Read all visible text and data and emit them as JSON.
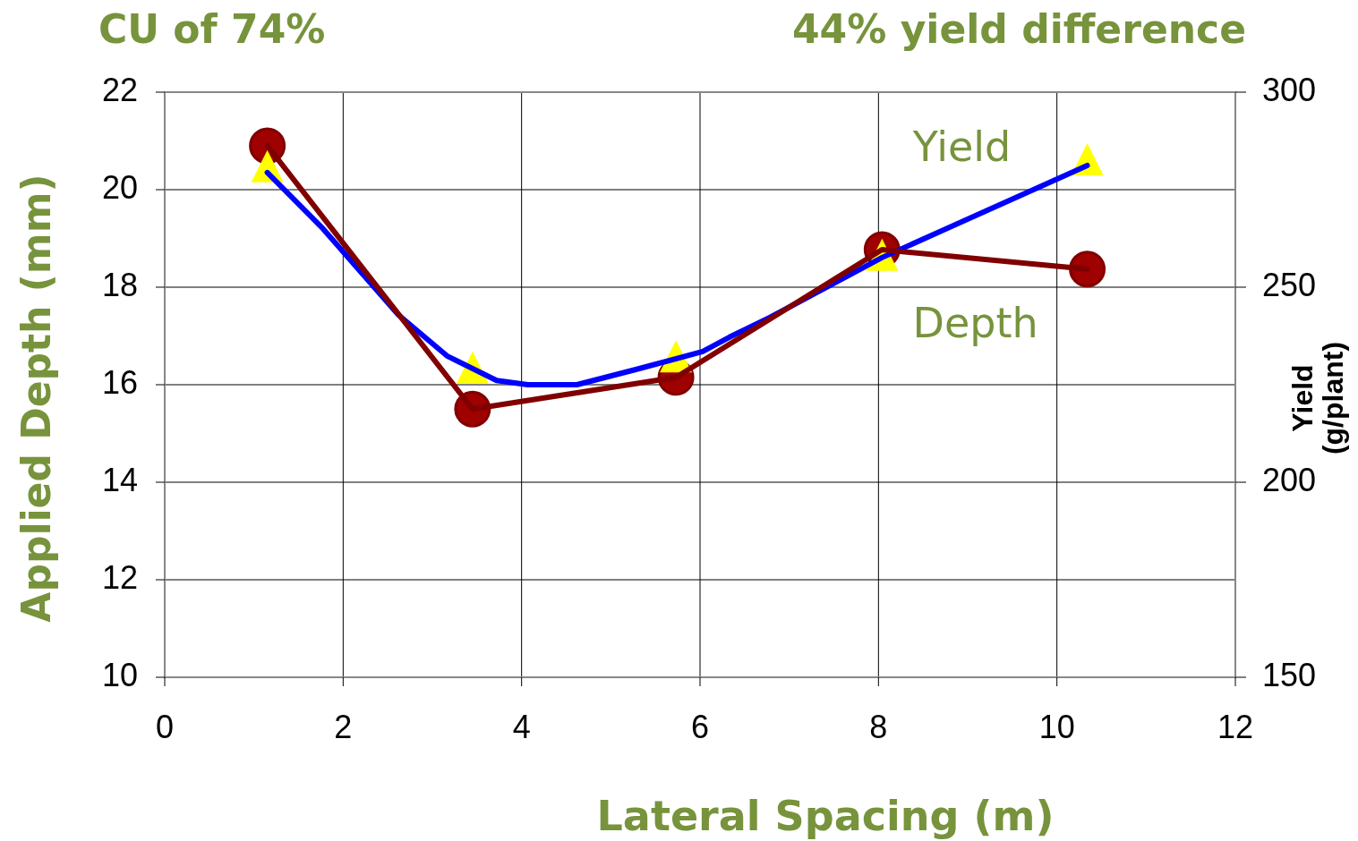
{
  "chart_data": {
    "type": "line",
    "title": "CU of 74%",
    "subtitle": "44% yield difference",
    "xlabel": "Lateral Spacing (m)",
    "ylabel": "Applied Depth (mm)",
    "y2label": "Yield (g/plant)",
    "xlim": [
      0,
      12
    ],
    "xticks": [
      0,
      2,
      4,
      6,
      8,
      10,
      12
    ],
    "ylim": [
      10,
      22
    ],
    "yticks": [
      10,
      12,
      14,
      16,
      18,
      20,
      22
    ],
    "y2lim": [
      150,
      300
    ],
    "y2ticks": [
      150,
      200,
      250,
      300
    ],
    "grid": true,
    "legend": false,
    "series": [
      {
        "type": "line",
        "color": "#0000ff",
        "axis": "y2",
        "marker": "none",
        "x": [
          1.15,
          1.77,
          2.62,
          3.17,
          3.72,
          4.07,
          4.62,
          5.28,
          6.03,
          6.33,
          6.78,
          8.04,
          10.34
        ],
        "values": [
          279.4,
          265.1,
          242.9,
          232.3,
          226.1,
          225,
          225,
          228.9,
          233.5,
          237.2,
          242.2,
          257.6,
          281.2
        ]
      },
      {
        "type": "line",
        "name": "Depth",
        "color": "#800000",
        "marker": "circle",
        "x": [
          1.15,
          3.45,
          5.73,
          8.04,
          10.34
        ],
        "values": [
          20.9,
          15.5,
          16.15,
          18.77,
          18.37
        ]
      },
      {
        "type": "scatter",
        "name": "Yield",
        "color": "#ffff00",
        "axis": "y2",
        "marker": "triangle",
        "x": [
          1.15,
          3.45,
          5.73,
          8.04,
          10.34
        ],
        "values": [
          279.4,
          227.8,
          230.7,
          256.7,
          281.2
        ]
      }
    ]
  }
}
